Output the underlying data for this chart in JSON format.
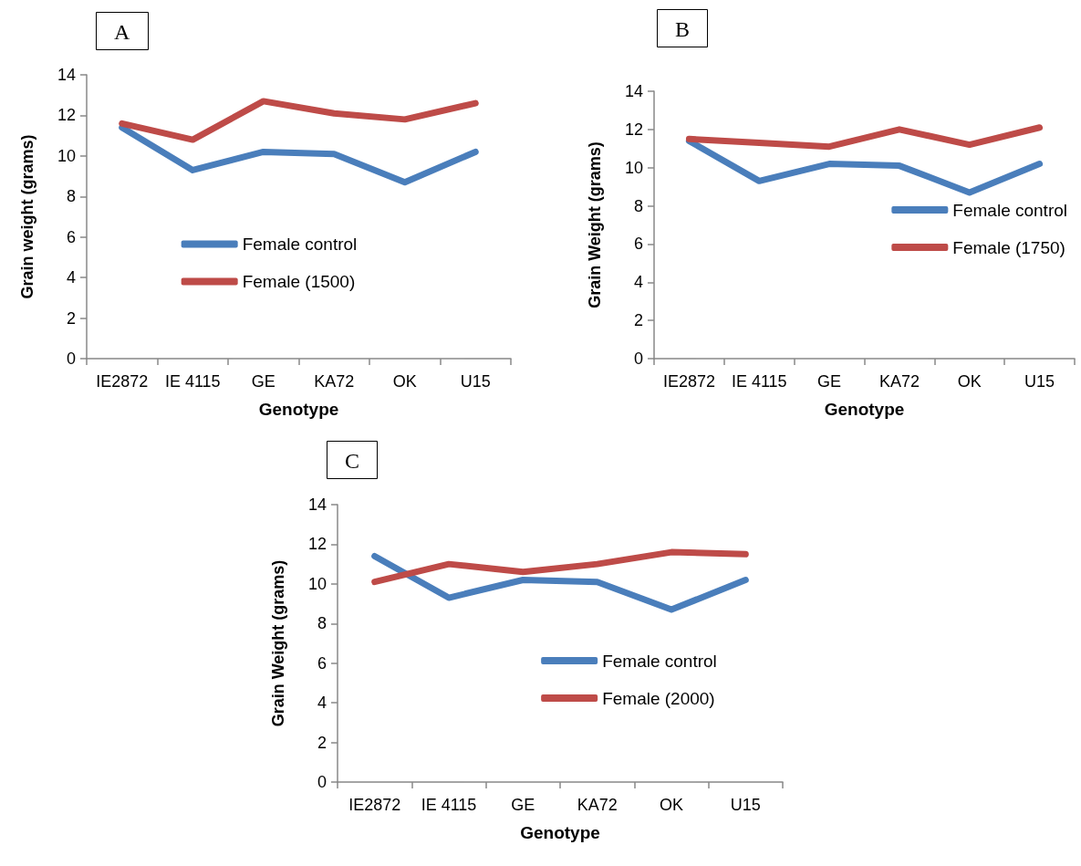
{
  "chart_data": [
    {
      "type": "line",
      "title": "A",
      "xlabel": "Genotype",
      "ylabel": "Grain weight (grams)",
      "categories": [
        "IE2872",
        "IE 4115",
        "GE",
        "KA72",
        "OK",
        "U15"
      ],
      "series": [
        {
          "name": "Female control",
          "color": "#4a7ebb",
          "values": [
            11.4,
            9.3,
            10.2,
            10.1,
            8.7,
            10.2
          ]
        },
        {
          "name": "Female (1500)",
          "color": "#be4b48",
          "values": [
            11.6,
            10.8,
            12.7,
            12.1,
            11.8,
            12.6
          ]
        }
      ],
      "ylim": [
        0,
        14
      ],
      "yticks": [
        0,
        2,
        4,
        6,
        8,
        10,
        12,
        14
      ],
      "grid": false,
      "legend": "bottom",
      "marker": "none",
      "line_style": "solid"
    },
    {
      "type": "line",
      "title": "B",
      "xlabel": "Genotype",
      "ylabel": "Grain Weight (grams)",
      "categories": [
        "IE2872",
        "IE 4115",
        "GE",
        "KA72",
        "OK",
        "U15"
      ],
      "series": [
        {
          "name": "Female control",
          "color": "#4a7ebb",
          "values": [
            11.4,
            9.3,
            10.2,
            10.1,
            8.7,
            10.2
          ]
        },
        {
          "name": "Female (1750)",
          "color": "#be4b48",
          "values": [
            11.5,
            11.3,
            11.1,
            12.0,
            11.2,
            12.1
          ]
        }
      ],
      "ylim": [
        0,
        14
      ],
      "yticks": [
        0,
        2,
        4,
        6,
        8,
        10,
        12,
        14
      ],
      "grid": false,
      "legend": "right",
      "marker": "none",
      "line_style": "solid"
    },
    {
      "type": "line",
      "title": "C",
      "xlabel": "Genotype",
      "ylabel": "Grain Weight (grams)",
      "categories": [
        "IE2872",
        "IE 4115",
        "GE",
        "KA72",
        "OK",
        "U15"
      ],
      "series": [
        {
          "name": "Female control",
          "color": "#4a7ebb",
          "values": [
            11.4,
            9.3,
            10.2,
            10.1,
            8.7,
            10.2
          ]
        },
        {
          "name": "Female (2000)",
          "color": "#be4b48",
          "values": [
            10.1,
            11.0,
            10.6,
            11.0,
            11.6,
            11.5
          ]
        }
      ],
      "ylim": [
        0,
        14
      ],
      "yticks": [
        0,
        2,
        4,
        6,
        8,
        10,
        12,
        14
      ],
      "grid": false,
      "legend": "bottom right",
      "marker": "none",
      "line_style": "solid"
    }
  ]
}
